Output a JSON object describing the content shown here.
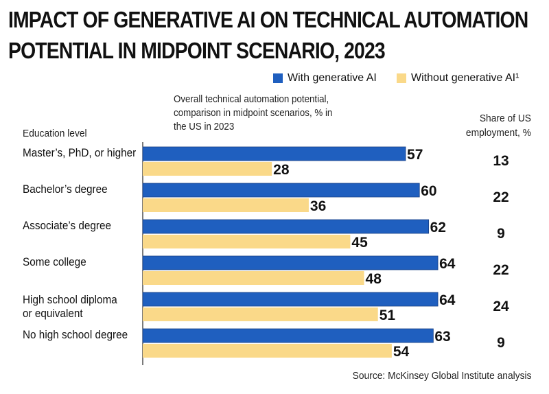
{
  "title_line1": "Impact of generative AI on technical automation",
  "title_line2": "potential in midpoint scenario, 2023",
  "legend": [
    {
      "label": "With generative AI",
      "color": "#1f5fbf"
    },
    {
      "label": "Without generative AI¹",
      "color": "#fad989"
    }
  ],
  "subtitle_line1": "Overall technical automation potential,",
  "subtitle_line2": "comparison in midpoint scenarios, % in",
  "subtitle_line3": "the US in 2023",
  "education_header": "Education level",
  "share_header_line1": "Share of US",
  "share_header_line2": "employment, %",
  "source": "Source: McKinsey Global Institute analysis",
  "chart_data": {
    "type": "bar",
    "orientation": "horizontal",
    "categories": [
      "Master’s, PhD, or higher",
      "Bachelor’s degree",
      "Associate’s degree",
      "Some college",
      "High school diploma or equivalent",
      "No high school degree"
    ],
    "category_lines": [
      [
        "Master’s, PhD, or higher"
      ],
      [
        "Bachelor’s degree"
      ],
      [
        "Associate’s degree"
      ],
      [
        "Some college"
      ],
      [
        "High school diploma",
        "or equivalent"
      ],
      [
        "No high school degree"
      ]
    ],
    "series": [
      {
        "name": "With generative AI",
        "color": "#1f5fbf",
        "values": [
          57,
          60,
          62,
          64,
          64,
          63
        ]
      },
      {
        "name": "Without generative AI¹",
        "color": "#fad989",
        "values": [
          28,
          36,
          45,
          48,
          51,
          54
        ]
      }
    ],
    "share_of_us_employment": [
      13,
      22,
      9,
      22,
      24,
      9
    ],
    "xlim": [
      0,
      100
    ],
    "grid": false
  }
}
